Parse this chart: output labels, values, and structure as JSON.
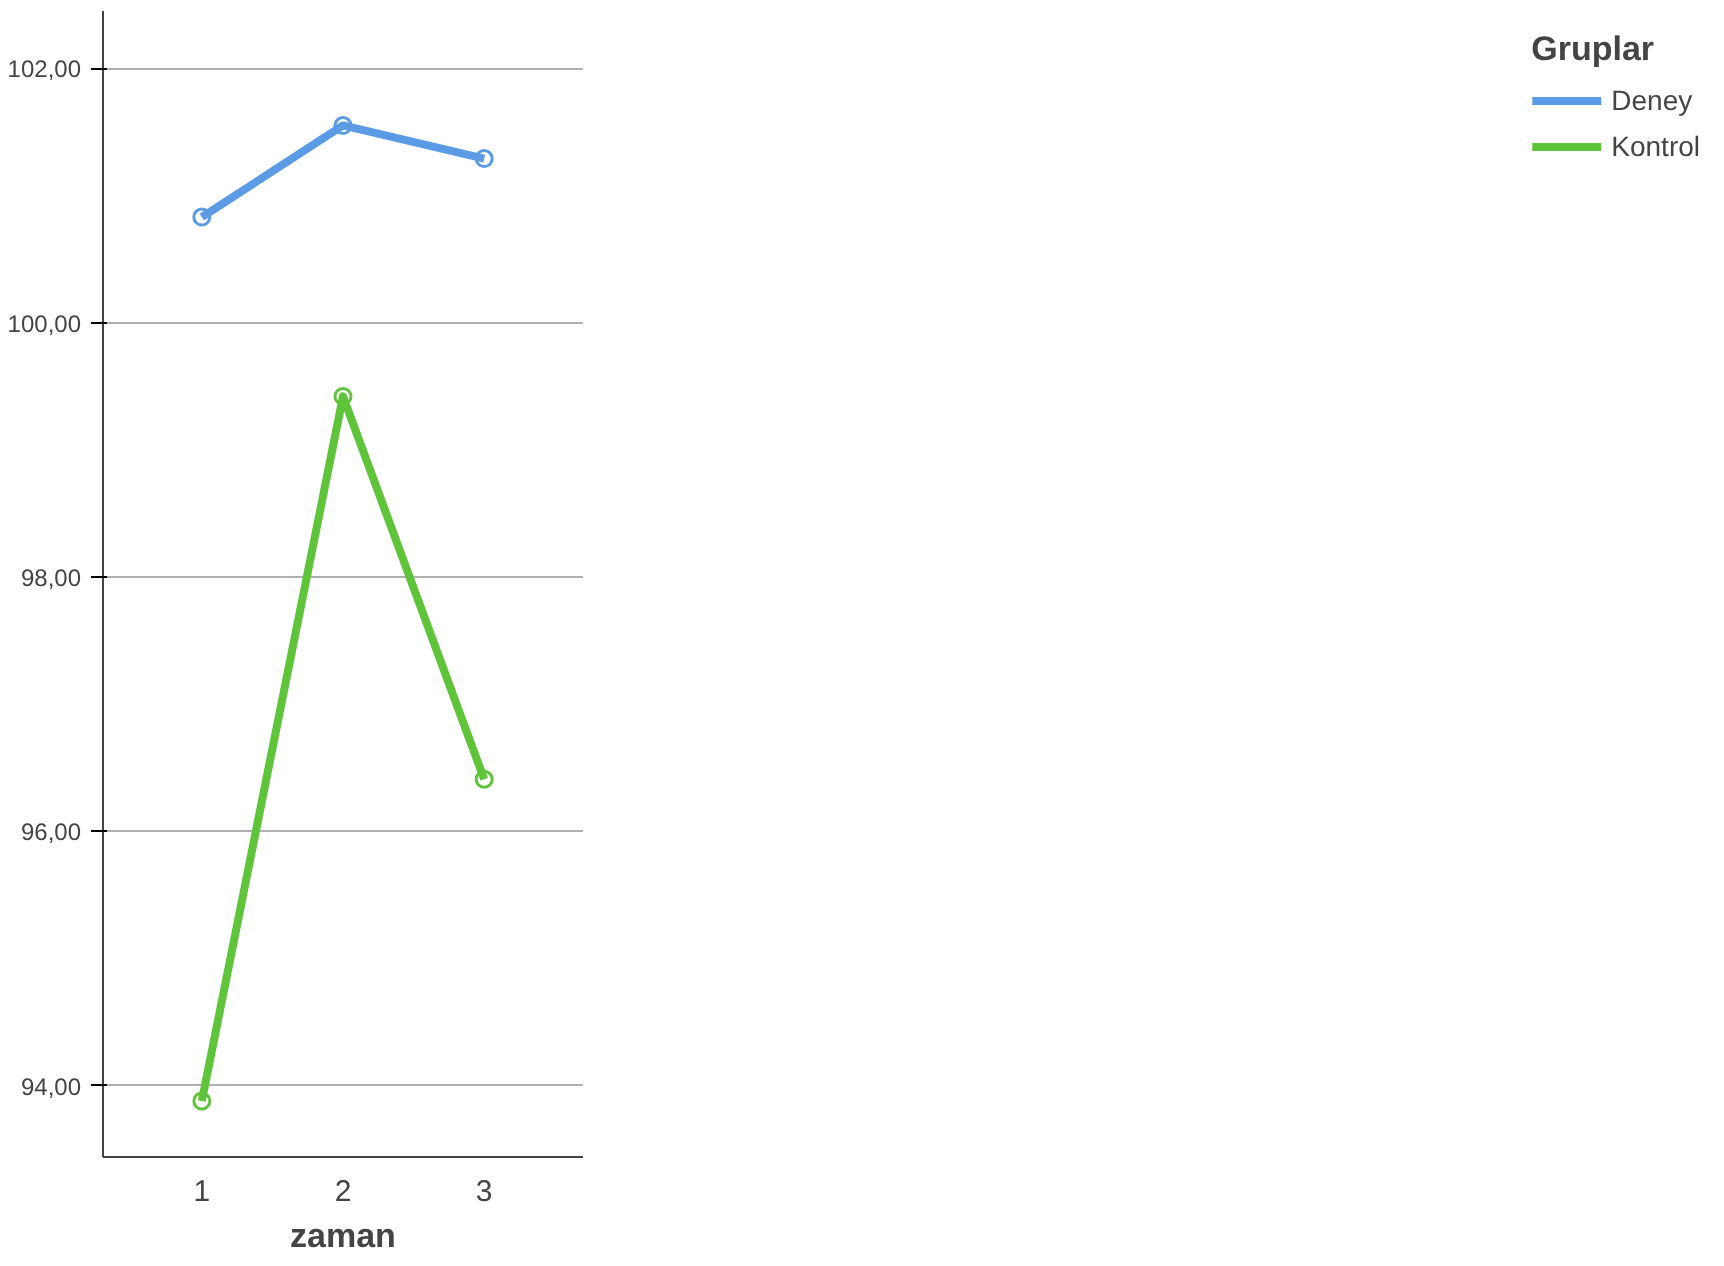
{
  "chart_data": {
    "type": "line",
    "xlabel": "zaman",
    "legend_title": "Gruplar",
    "categories": [
      "1",
      "2",
      "3"
    ],
    "series": [
      {
        "name": "Deney",
        "color": "#5b9be6",
        "values": [
          100.83,
          101.55,
          101.29
        ]
      },
      {
        "name": "Kontrol",
        "color": "#5fc43a",
        "values": [
          93.88,
          99.42,
          96.41
        ]
      }
    ],
    "ylim": [
      93.44,
      102.45
    ],
    "yticks": [
      {
        "value": 94,
        "label": "94,00"
      },
      {
        "value": 96,
        "label": "96,00"
      },
      {
        "value": 98,
        "label": "98,00"
      },
      {
        "value": 100,
        "label": "100,00"
      },
      {
        "value": 102,
        "label": "102,00"
      }
    ],
    "grid": "y",
    "legend": "right",
    "marker": "circle",
    "line_style": "solid"
  }
}
